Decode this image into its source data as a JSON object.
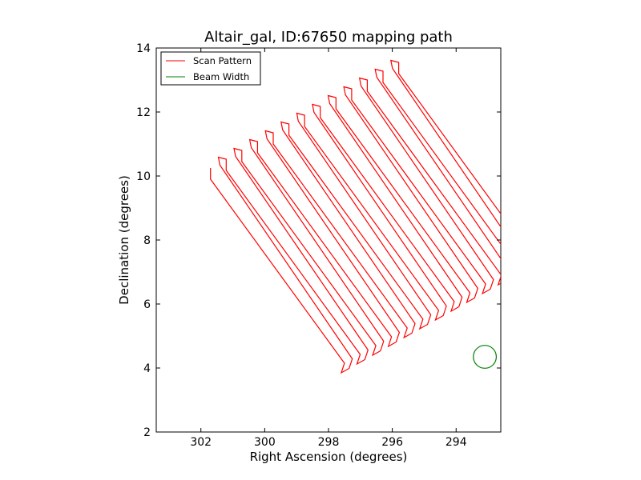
{
  "chart_data": {
    "type": "line",
    "title": "Altair_gal, ID:67650 mapping path",
    "xlabel": "Right Ascension (degrees)",
    "ylabel": "Declination (degrees)",
    "xlim": [
      303.4,
      292.6
    ],
    "ylim": [
      2,
      14
    ],
    "x_inverted": true,
    "xticks": [
      302,
      300,
      298,
      296,
      294
    ],
    "yticks": [
      2,
      4,
      6,
      8,
      10,
      12,
      14
    ],
    "grid": false,
    "legend_position": "top-left",
    "legend": [
      "Scan Pattern",
      "Beam Width"
    ],
    "series": [
      {
        "name": "Scan Pattern",
        "color": "#ff0000",
        "scan_start": {
          "ra": 301.7,
          "dec": 10.25
        },
        "scan_end": {
          "ra": 295.8,
          "dec": 13.55
        },
        "scan_count": 25,
        "scan_direction_delta": {
          "ra": -4.2,
          "dec": -6.1
        },
        "turn_offset": {
          "ra": -0.25,
          "dec": 0.3
        }
      },
      {
        "name": "Beam Width",
        "color": "#008000",
        "shape": "circle",
        "center": {
          "ra": 293.1,
          "dec": 4.35
        },
        "radius_deg": 0.36
      }
    ]
  }
}
